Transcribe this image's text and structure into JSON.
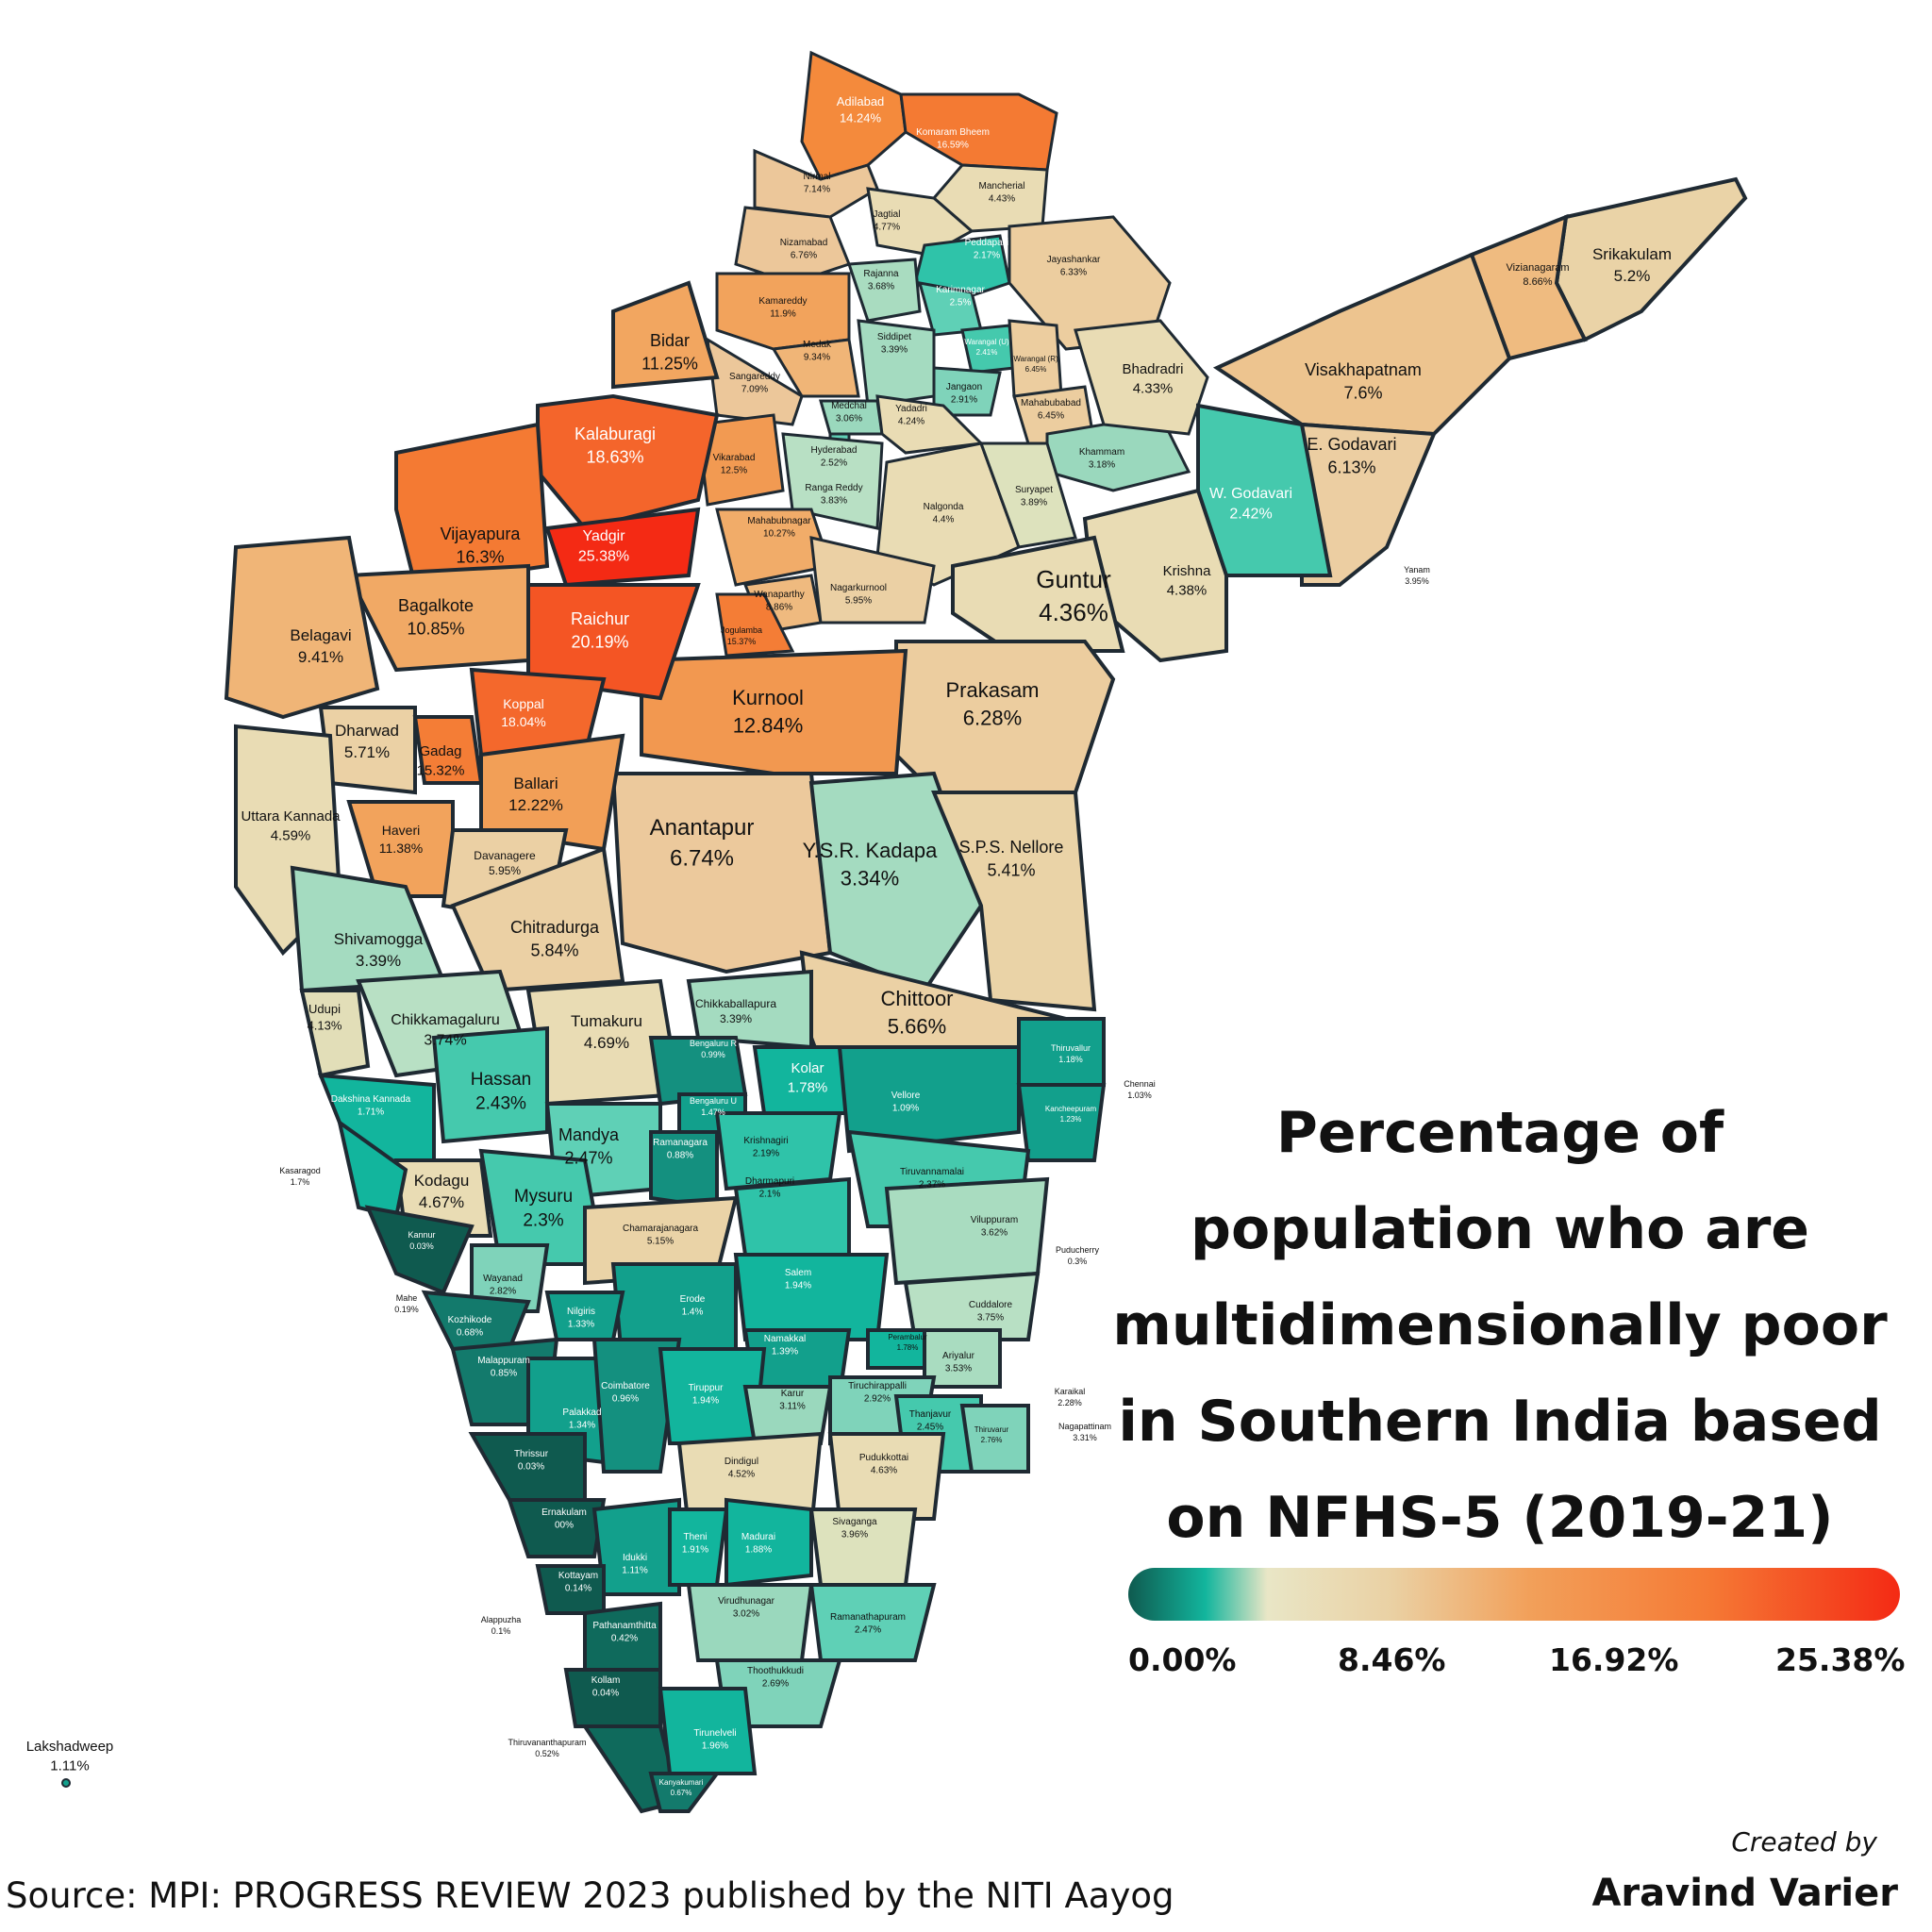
{
  "title_lines": [
    "Percentage of",
    "population who are",
    "multidimensionally poor",
    "in Southern India based",
    "on NFHS-5 (2019-21)"
  ],
  "legend": {
    "ticks": [
      "0.00%",
      "8.46%",
      "16.92%",
      "25.38%"
    ],
    "colors": [
      "#0f5a4f",
      "#12b59d",
      "#e9e6c6",
      "#ead1a4",
      "#f2a05a",
      "#f57a35",
      "#f42a14"
    ]
  },
  "source": "Source: MPI: PROGRESS REVIEW 2023 published by the NITI Aayog",
  "created_by": "Created by",
  "author": "Aravind Varier",
  "districts": [
    {
      "name": "Adilabad",
      "value": "14.24%",
      "color": "#f48a3c"
    },
    {
      "name": "Komaram Bheem",
      "value": "16.59%",
      "color": "#f47a33"
    },
    {
      "name": "Nirmal",
      "value": "7.14%",
      "color": "#ecc79a"
    },
    {
      "name": "Mancherial",
      "value": "4.43%",
      "color": "#e9dcb4"
    },
    {
      "name": "Jagtial",
      "value": "4.77%",
      "color": "#e9dcb4"
    },
    {
      "name": "Nizamabad",
      "value": "6.76%",
      "color": "#ecc79a"
    },
    {
      "name": "Peddapalli",
      "value": "2.17%",
      "color": "#2fc3a9"
    },
    {
      "name": "Jayashankar",
      "value": "6.33%",
      "color": "#eccd9f"
    },
    {
      "name": "Rajanna",
      "value": "3.68%",
      "color": "#a9dcc0"
    },
    {
      "name": "Karimnagar",
      "value": "2.5%",
      "color": "#5fd0b6"
    },
    {
      "name": "Kamareddy",
      "value": "11.9%",
      "color": "#f2a35c"
    },
    {
      "name": "Medak",
      "value": "9.34%",
      "color": "#f0b577"
    },
    {
      "name": "Siddipet",
      "value": "3.39%",
      "color": "#a4dbc0"
    },
    {
      "name": "Warangal (U)",
      "value": "2.41%",
      "color": "#45c9ad"
    },
    {
      "name": "Warangal (R)",
      "value": "6.45%",
      "color": "#eccd9f"
    },
    {
      "name": "Sangareddy",
      "value": "7.09%",
      "color": "#ecc79a"
    },
    {
      "name": "Jangaon",
      "value": "2.91%",
      "color": "#7fd3ba"
    },
    {
      "name": "Mahabubabad",
      "value": "6.45%",
      "color": "#eccd9f"
    },
    {
      "name": "Medchal",
      "value": "3.06%",
      "color": "#9ad8bd"
    },
    {
      "name": "Yadadri",
      "value": "4.24%",
      "color": "#e9dcb4"
    },
    {
      "name": "Hyderabad",
      "value": "2.52%",
      "color": "#5fd0b6"
    },
    {
      "name": "Vikarabad",
      "value": "12.5%",
      "color": "#f29a52"
    },
    {
      "name": "Ranga Reddy",
      "value": "3.83%",
      "color": "#b8e0c4"
    },
    {
      "name": "Khammam",
      "value": "3.18%",
      "color": "#9ad8bd"
    },
    {
      "name": "Bhadradri",
      "value": "4.33%",
      "color": "#e9dcb4"
    },
    {
      "name": "Nalgonda",
      "value": "4.4%",
      "color": "#e9dcb4"
    },
    {
      "name": "Suryapet",
      "value": "3.89%",
      "color": "#dde2bd"
    },
    {
      "name": "Mahabubnagar",
      "value": "10.27%",
      "color": "#f1ac69"
    },
    {
      "name": "Wanaparthy",
      "value": "8.86%",
      "color": "#efba7f"
    },
    {
      "name": "Nagarkurnool",
      "value": "5.95%",
      "color": "#ebd0a4"
    },
    {
      "name": "Jogulamba",
      "value": "15.37%",
      "color": "#f47d36"
    },
    {
      "name": "Srikakulam",
      "value": "5.2%",
      "color": "#ead3a7"
    },
    {
      "name": "Vizianagaram",
      "value": "8.66%",
      "color": "#efbb80"
    },
    {
      "name": "Visakhapatnam",
      "value": "7.6%",
      "color": "#edc48f"
    },
    {
      "name": "E. Godavari",
      "value": "6.13%",
      "color": "#eccea2"
    },
    {
      "name": "W. Godavari",
      "value": "2.42%",
      "color": "#45c9ad"
    },
    {
      "name": "Krishna",
      "value": "4.38%",
      "color": "#e9dcb4"
    },
    {
      "name": "Yanam",
      "value": "3.95%",
      "color": "#dde2bd"
    },
    {
      "name": "Guntur",
      "value": "4.36%",
      "color": "#e9dcb4"
    },
    {
      "name": "Prakasam",
      "value": "6.28%",
      "color": "#eccd9f"
    },
    {
      "name": "Kurnool",
      "value": "12.84%",
      "color": "#f29850"
    },
    {
      "name": "Anantapur",
      "value": "6.74%",
      "color": "#ecc99c"
    },
    {
      "name": "Y.S.R. Kadapa",
      "value": "3.34%",
      "color": "#a4dbc0"
    },
    {
      "name": "S.P.S. Nellore",
      "value": "5.41%",
      "color": "#ead3a7"
    },
    {
      "name": "Chittoor",
      "value": "5.66%",
      "color": "#ebd1a5"
    },
    {
      "name": "Bidar",
      "value": "11.25%",
      "color": "#f2a660"
    },
    {
      "name": "Kalaburagi",
      "value": "18.63%",
      "color": "#f4652b"
    },
    {
      "name": "Vijayapura",
      "value": "16.3%",
      "color": "#f47a33"
    },
    {
      "name": "Yadgir",
      "value": "25.38%",
      "color": "#f42a14"
    },
    {
      "name": "Bagalkote",
      "value": "10.85%",
      "color": "#f1a965"
    },
    {
      "name": "Raichur",
      "value": "20.19%",
      "color": "#f45524"
    },
    {
      "name": "Belagavi",
      "value": "9.41%",
      "color": "#f0b577"
    },
    {
      "name": "Dharwad",
      "value": "5.71%",
      "color": "#ebd1a5"
    },
    {
      "name": "Koppal",
      "value": "18.04%",
      "color": "#f4682c"
    },
    {
      "name": "Gadag",
      "value": "15.32%",
      "color": "#f47d36"
    },
    {
      "name": "Ballari",
      "value": "12.22%",
      "color": "#f29f57"
    },
    {
      "name": "Uttara Kannada",
      "value": "4.59%",
      "color": "#e9dcb4"
    },
    {
      "name": "Haveri",
      "value": "11.38%",
      "color": "#f2a35c"
    },
    {
      "name": "Davanagere",
      "value": "5.95%",
      "color": "#ebd0a4"
    },
    {
      "name": "Shivamogga",
      "value": "3.39%",
      "color": "#a4dbc0"
    },
    {
      "name": "Chitradurga",
      "value": "5.84%",
      "color": "#ebd0a4"
    },
    {
      "name": "Udupi",
      "value": "4.13%",
      "color": "#e2deb8"
    },
    {
      "name": "Chikkamagaluru",
      "value": "3.74%",
      "color": "#b8e0c4"
    },
    {
      "name": "Tumakuru",
      "value": "4.69%",
      "color": "#e9dcb4"
    },
    {
      "name": "Chikkaballapura",
      "value": "3.39%",
      "color": "#a4dbc0"
    },
    {
      "name": "Bengaluru R",
      "value": "0.99%",
      "color": "#14907f"
    },
    {
      "name": "Kolar",
      "value": "1.78%",
      "color": "#12b59d"
    },
    {
      "name": "Dakshina Kannada",
      "value": "1.71%",
      "color": "#12b59d"
    },
    {
      "name": "Hassan",
      "value": "2.43%",
      "color": "#45c9ad"
    },
    {
      "name": "Bengaluru U",
      "value": "1.47%",
      "color": "#12a08c"
    },
    {
      "name": "Mandya",
      "value": "2.47%",
      "color": "#5fd0b6"
    },
    {
      "name": "Ramanagara",
      "value": "0.88%",
      "color": "#14907f"
    },
    {
      "name": "Krishnagiri",
      "value": "2.19%",
      "color": "#2fc3a9"
    },
    {
      "name": "Kasaragod",
      "value": "1.7%",
      "color": "#12b59d"
    },
    {
      "name": "Kodagu",
      "value": "4.67%",
      "color": "#e9dcb4"
    },
    {
      "name": "Mysuru",
      "value": "2.3%",
      "color": "#45c9ad"
    },
    {
      "name": "Chamarajanagara",
      "value": "5.15%",
      "color": "#ead3a7"
    },
    {
      "name": "Dharmapuri",
      "value": "2.1%",
      "color": "#2fc3a9"
    },
    {
      "name": "Kannur",
      "value": "0.03%",
      "color": "#0f5a4f"
    },
    {
      "name": "Wayanad",
      "value": "2.82%",
      "color": "#7fd3ba"
    },
    {
      "name": "Mahe",
      "value": "0.19%",
      "color": "#0f5a4f"
    },
    {
      "name": "Kozhikode",
      "value": "0.68%",
      "color": "#137a6c"
    },
    {
      "name": "Nilgiris",
      "value": "1.33%",
      "color": "#12a08c"
    },
    {
      "name": "Erode",
      "value": "1.4%",
      "color": "#12a08c"
    },
    {
      "name": "Salem",
      "value": "1.94%",
      "color": "#12b59d"
    },
    {
      "name": "Malappuram",
      "value": "0.85%",
      "color": "#137a6c"
    },
    {
      "name": "Namakkal",
      "value": "1.39%",
      "color": "#12a08c"
    },
    {
      "name": "Palakkad",
      "value": "1.34%",
      "color": "#12a08c"
    },
    {
      "name": "Coimbatore",
      "value": "0.96%",
      "color": "#14907f"
    },
    {
      "name": "Tiruppur",
      "value": "1.94%",
      "color": "#12b59d"
    },
    {
      "name": "Karur",
      "value": "3.11%",
      "color": "#9ad8bd"
    },
    {
      "name": "Perambalur",
      "value": "1.78%",
      "color": "#12b59d"
    },
    {
      "name": "Ariyalur",
      "value": "3.53%",
      "color": "#a9dcc0"
    },
    {
      "name": "Tiruchirappalli",
      "value": "2.92%",
      "color": "#7fd3ba"
    },
    {
      "name": "Thrissur",
      "value": "0.03%",
      "color": "#0f5a4f"
    },
    {
      "name": "Dindigul",
      "value": "4.52%",
      "color": "#e9dcb4"
    },
    {
      "name": "Thanjavur",
      "value": "2.45%",
      "color": "#45c9ad"
    },
    {
      "name": "Thiruvarur",
      "value": "2.76%",
      "color": "#7fd3ba"
    },
    {
      "name": "Pudukkottai",
      "value": "4.63%",
      "color": "#e9dcb4"
    },
    {
      "name": "Ernakulam",
      "value": "00%",
      "color": "#0f5a4f"
    },
    {
      "name": "Idukki",
      "value": "1.11%",
      "color": "#12a08c"
    },
    {
      "name": "Theni",
      "value": "1.91%",
      "color": "#12b59d"
    },
    {
      "name": "Madurai",
      "value": "1.88%",
      "color": "#12b59d"
    },
    {
      "name": "Sivaganga",
      "value": "3.96%",
      "color": "#dde2bd"
    },
    {
      "name": "Kottayam",
      "value": "0.14%",
      "color": "#0f5a4f"
    },
    {
      "name": "Alappuzha",
      "value": "0.1%",
      "color": "#0f5a4f"
    },
    {
      "name": "Virudhunagar",
      "value": "3.02%",
      "color": "#9ad8bd"
    },
    {
      "name": "Ramanathapuram",
      "value": "2.47%",
      "color": "#5fd0b6"
    },
    {
      "name": "Pathanamthitta",
      "value": "0.42%",
      "color": "#0f6a5c"
    },
    {
      "name": "Kollam",
      "value": "0.04%",
      "color": "#0f5a4f"
    },
    {
      "name": "Thoothukkudi",
      "value": "2.69%",
      "color": "#7fd3ba"
    },
    {
      "name": "Thiruvananthapuram",
      "value": "0.52%",
      "color": "#0f6a5c"
    },
    {
      "name": "Tirunelveli",
      "value": "1.96%",
      "color": "#12b59d"
    },
    {
      "name": "Kanyakumari",
      "value": "0.67%",
      "color": "#137a6c"
    },
    {
      "name": "Vellore",
      "value": "1.09%",
      "color": "#12a08c"
    },
    {
      "name": "Thiruvallur",
      "value": "1.18%",
      "color": "#12a08c"
    },
    {
      "name": "Chennai",
      "value": "1.03%",
      "color": "#14907f"
    },
    {
      "name": "Kancheepuram",
      "value": "1.23%",
      "color": "#12a08c"
    },
    {
      "name": "Tiruvannamalai",
      "value": "2.37%",
      "color": "#45c9ad"
    },
    {
      "name": "Viluppuram",
      "value": "3.62%",
      "color": "#a9dcc0"
    },
    {
      "name": "Puducherry",
      "value": "0.3%",
      "color": "#0f5a4f"
    },
    {
      "name": "Cuddalore",
      "value": "3.75%",
      "color": "#b8e0c4"
    },
    {
      "name": "Karaikal",
      "value": "2.28%",
      "color": "#2fc3a9"
    },
    {
      "name": "Nagapattinam",
      "value": "3.31%",
      "color": "#a4dbc0"
    },
    {
      "name": "Lakshadweep",
      "value": "1.11%",
      "color": "#12a08c"
    }
  ]
}
